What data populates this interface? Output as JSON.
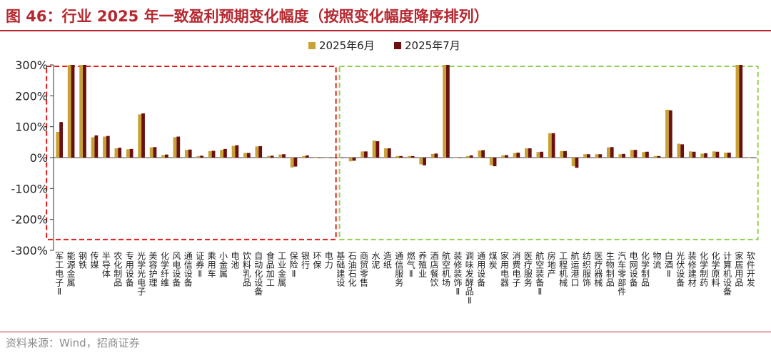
{
  "title": "图 46：行业 2025 年一致盈利预期变化幅度（按照变化幅度降序排列）",
  "source": "资料来源：Wind，招商证券",
  "colors": {
    "june": "#c9a235",
    "july": "#6a0f12",
    "redbox": "#e31c1c",
    "greenbox": "#92d050",
    "title": "#b5282f"
  },
  "chart_data": {
    "type": "bar",
    "ylim": [
      -300,
      300
    ],
    "yticks": [
      "300%",
      "200%",
      "100%",
      "0%",
      "-100%",
      "-200%",
      "-300%"
    ],
    "legend": [
      "2025年6月",
      "2025年7月"
    ],
    "legend_position": "top-center",
    "categories": [
      "军工电子Ⅱ",
      "能源金属",
      "钢铁",
      "传媒",
      "半导体",
      "农化制品",
      "专用设备",
      "光学光电子",
      "美容护理",
      "化学纤维",
      "风电设备",
      "通信设备",
      "证券Ⅱ",
      "乘用车",
      "小金属",
      "电池",
      "饮料乳品",
      "自动化设备",
      "食品加工",
      "工业金属",
      "保险Ⅱ",
      "银行",
      "环保",
      "电力",
      "基础建设",
      "石油石化",
      "商贸零售",
      "水泥",
      "造纸",
      "通信服务",
      "燃气Ⅱ",
      "养殖业",
      "酒店餐饮",
      "航空机场",
      "装修装饰Ⅱ",
      "调味发酵品Ⅱ",
      "通用设备",
      "煤炭",
      "家用电器",
      "消费电子",
      "医疗服务",
      "航空装备Ⅱ",
      "房地产",
      "工程机械",
      "航运港口",
      "纺织服饰",
      "医疗器械",
      "生物制品",
      "汽车零部件",
      "电网设备",
      "化学制品",
      "物流",
      "白酒Ⅱ",
      "光伏设备",
      "装修建材",
      "化学制药",
      "化学原料",
      "计算机设备",
      "家居用品",
      "软件开发"
    ],
    "series": [
      {
        "name": "2025年6月",
        "values": [
          83,
          300,
          300,
          66,
          68,
          30,
          27,
          140,
          33,
          8,
          66,
          25,
          5,
          21,
          25,
          38,
          15,
          36,
          5,
          10,
          -32,
          5,
          0,
          0,
          0,
          -12,
          20,
          55,
          30,
          5,
          5,
          -22,
          12,
          300,
          0,
          5,
          23,
          -25,
          7,
          15,
          30,
          18,
          79,
          21,
          -28,
          11,
          11,
          33,
          11,
          25,
          18,
          5,
          155,
          45,
          20,
          13,
          20,
          16,
          300,
          0
        ]
      },
      {
        "name": "2025年7月",
        "values": [
          115,
          300,
          300,
          72,
          70,
          32,
          28,
          143,
          34,
          10,
          68,
          26,
          6,
          22,
          28,
          40,
          15,
          37,
          6,
          11,
          -29,
          7,
          0,
          0,
          0,
          -10,
          20,
          53,
          30,
          5,
          5,
          -25,
          13,
          300,
          0,
          7,
          24,
          -28,
          8,
          16,
          30,
          19,
          79,
          21,
          -33,
          11,
          11,
          34,
          12,
          25,
          19,
          5,
          153,
          43,
          19,
          14,
          19,
          16,
          300,
          0
        ]
      }
    ],
    "annotations": [
      {
        "type": "dashed-box",
        "color": "red",
        "from": "军工电子Ⅱ",
        "to": "电力",
        "y_range": [
          -265,
          300
        ]
      },
      {
        "type": "dashed-box",
        "color": "green",
        "from": "石油石化",
        "to": "软件开发",
        "y_range": [
          -265,
          300
        ]
      }
    ]
  }
}
